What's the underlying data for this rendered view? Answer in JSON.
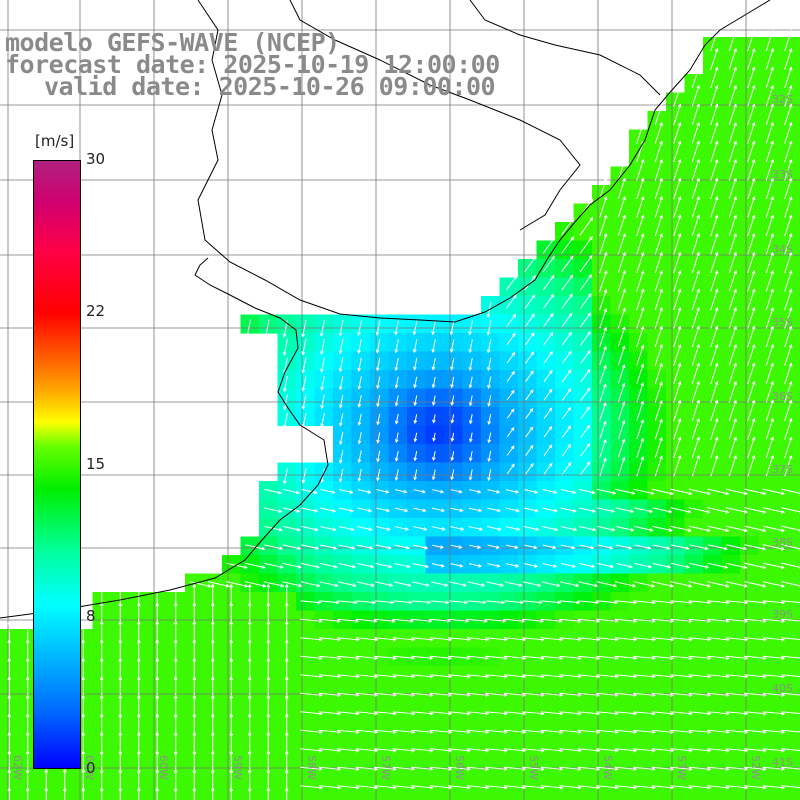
{
  "title": {
    "line1": "modelo GEFS-WAVE (NCEP)",
    "line2": "forecast date: 2025-10-19 12:00:00",
    "line3": "valid date: 2025-10-26 09:00:00"
  },
  "colorbar": {
    "unit": "[m/s]",
    "ticks": [
      "30",
      "22",
      "15",
      "8",
      "0"
    ],
    "min": 0,
    "max": 30
  },
  "lat_labels": [
    "32S",
    "33S",
    "34S",
    "35S",
    "36S",
    "37S",
    "38S",
    "39S",
    "40S",
    "41S"
  ],
  "lon_labels": [
    "62W",
    "61W",
    "60W",
    "59W",
    "58W",
    "57W",
    "56W",
    "55W",
    "54W",
    "53W",
    "52W"
  ],
  "colors": {
    "land": "#ffffff",
    "coast": "#000000",
    "grid": "#7a7a7a",
    "arrow": "#ffffff"
  }
}
